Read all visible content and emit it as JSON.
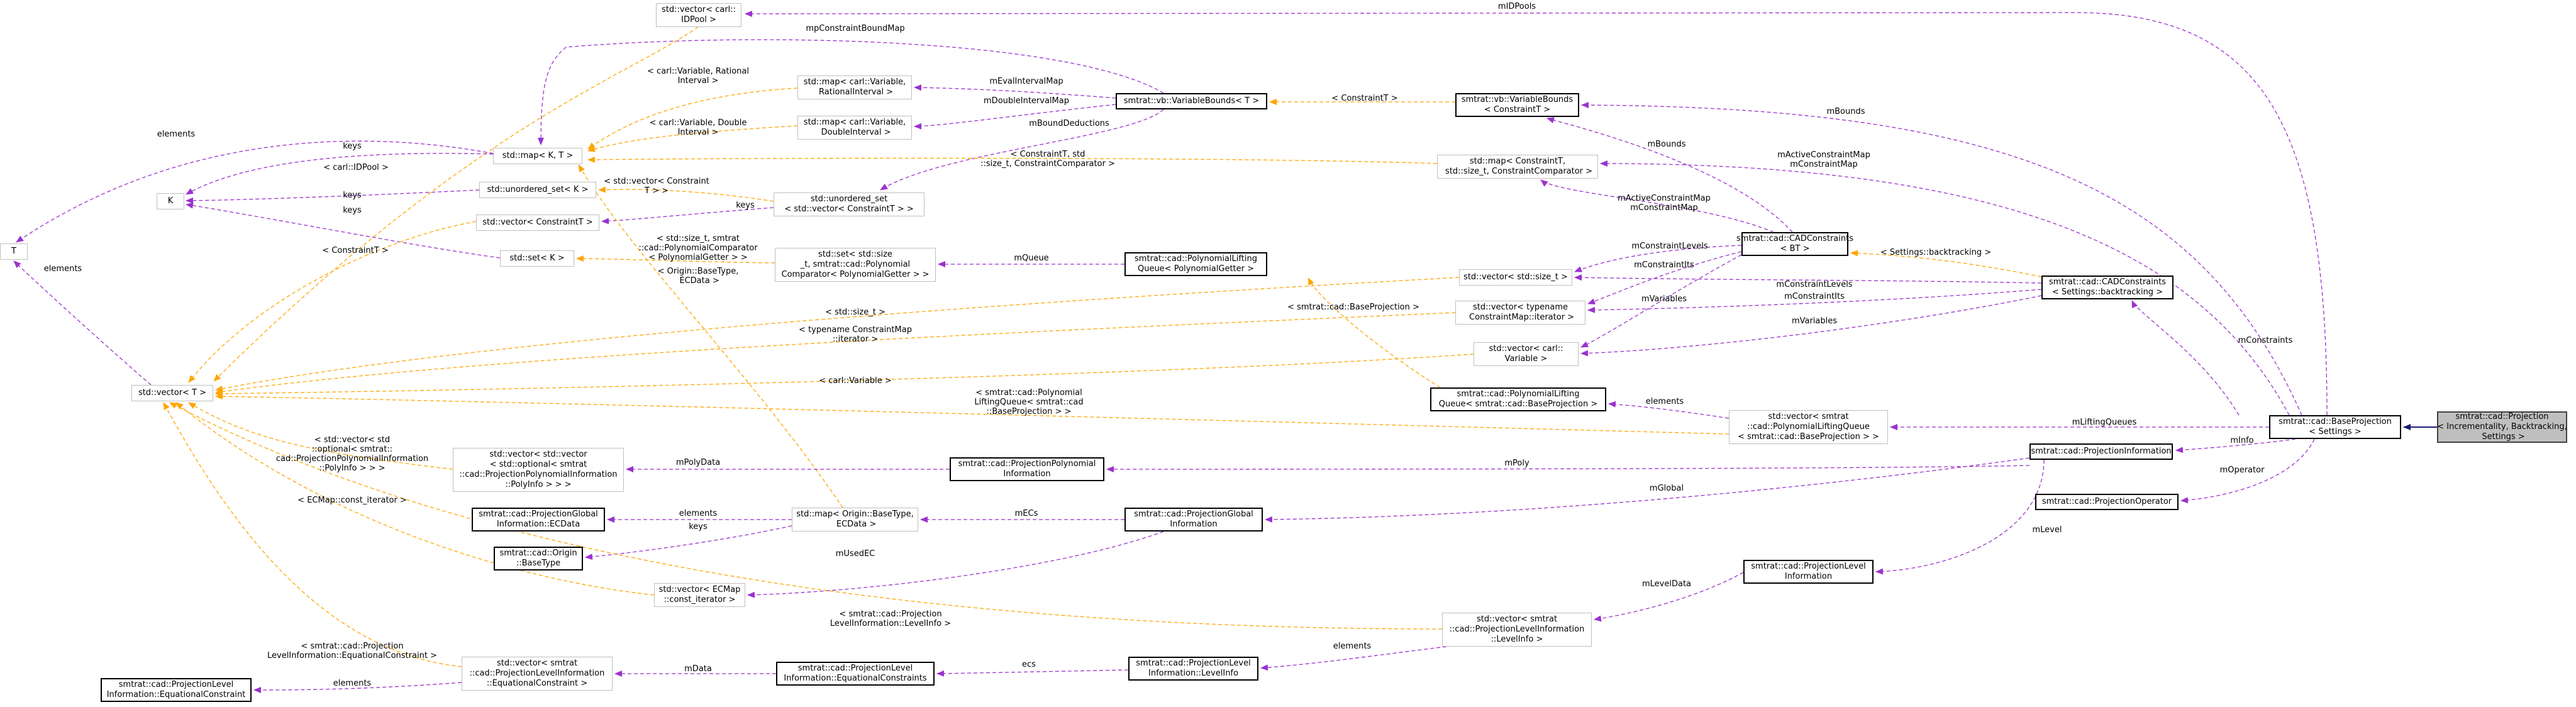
{
  "colors": {
    "usage": "#9a32cd",
    "template": "#ffa500",
    "inheritance": "#191970"
  },
  "nodes": {
    "projection_incr": "smtrat::cad::Projection\n< Incrementality, Backtracking,\n Settings >",
    "base_projection": "smtrat::cad::BaseProjection\n< Settings >",
    "projection_information": "smtrat::cad::ProjectionInformation",
    "projection_operator": "smtrat::cad::ProjectionOperator",
    "cadconstraints_bt": "smtrat::cad::CADConstraints\n< Settings::backtracking >",
    "cadconstraints": "smtrat::cad::CADConstraints\n< BT >",
    "vb_bounds_ct": "smtrat::vb::VariableBounds\n< ConstraintT >",
    "vb_bounds_t": "smtrat::vb::VariableBounds< T >",
    "map_constraint": "std::map< ConstraintT,\n std::size_t, ConstraintComparator >",
    "vector_size_t": "std::vector< std::size_t >",
    "vector_typename": "std::vector< typename\n ConstraintMap::iterator >",
    "vector_carl_var": "std::vector< carl::\nVariable >",
    "lifting_queue": "smtrat::cad::PolynomialLifting\nQueue< smtrat::cad::BaseProjection >",
    "vector_lifting_queue": "std::vector< smtrat\n::cad::PolynomialLiftingQueue\n< smtrat::cad::BaseProjection > >",
    "projection_level_info": "smtrat::cad::ProjectionLevel\nInformation",
    "vector_level_info": "std::vector< smtrat\n::cad::ProjectionLevelInformation\n::LevelInfo >",
    "level_info": "smtrat::cad::ProjectionLevel\nInformation::LevelInfo",
    "equational_constraints": "smtrat::cad::ProjectionLevel\nInformation::EquationalConstraints",
    "vector_eq_constraint": "std::vector< smtrat\n::cad::ProjectionLevelInformation\n::EquationalConstraint >",
    "eq_constraint": "smtrat::cad::ProjectionLevel\nInformation::EquationalConstraint",
    "lifting_queue_getter": "smtrat::cad::PolynomialLifting\nQueue< PolynomialGetter >",
    "set_size_t": "std::set< std::size\n_t, smtrat::cad::Polynomial\nComparator< PolynomialGetter > >",
    "poly_info": "smtrat::cad::ProjectionPolynomial\nInformation",
    "global_info": "smtrat::cad::ProjectionGlobal\nInformation",
    "map_origin": "std::map< Origin::BaseType,\n ECData >",
    "vector_vector_opt": "std::vector< std::vector\n< std::optional< smtrat\n::cad::ProjectionPolynomialInformation\n::PolyInfo > > >",
    "global_ecdata": "smtrat::cad::ProjectionGlobal\nInformation::ECData",
    "origin_basetype": "smtrat::cad::Origin\n::BaseType",
    "vector_ecmap": "std::vector< ECMap\n::const_iterator >",
    "vector_idpool": "std::vector< carl::\nIDPool >",
    "map_rational": "std::map< carl::Variable,\n RationalInterval >",
    "map_double": "std::map< carl::Variable,\n DoubleInterval >",
    "map_kt": "std::map< K, T >",
    "unordered_set_k": "std::unordered_set< K >",
    "unordered_set_vec": "std::unordered_set\n< std::vector< ConstraintT > >",
    "vector_constraint": "std::vector< ConstraintT >",
    "set_k": "std::set< K >",
    "k": "K",
    "t": "T",
    "vector_t": "std::vector< T >"
  },
  "labels": {
    "mIDPools": "mIDPools",
    "mConstraintBoundMap": "mpConstraintBoundMap",
    "carl_rational": "< carl::Variable, Rational\nInterval >",
    "mEvalIntervalMap": "mEvalIntervalMap",
    "mDoubleIntervalMap": "mDoubleIntervalMap",
    "constraintT_a": "< ConstraintT >",
    "carl_double": "< carl::Variable, Double\nInterval >",
    "mBoundDeductions": "mBoundDeductions",
    "elements_a": "elements",
    "keys_a": "keys",
    "constraintT_comp": "< ConstraintT, std\n::size_t, ConstraintComparator >",
    "carl_idpool": "< carl::IDPool >",
    "keys_b": "keys",
    "vector_constraint": "< std::vector< Constraint\nT > >",
    "keys_c": "keys",
    "keys_d": "keys",
    "mBounds_a": "mBounds",
    "mBounds_b": "mBounds",
    "mActive_a": "mActiveConstraintMap\nmConstraintMap",
    "mActive_b": "mActiveConstraintMap\nmConstraintMap",
    "mConstraintLevels_a": "mConstraintLevels",
    "mConstraintIts_a": "mConstraintIts",
    "mVariables_a": "mVariables",
    "settings_bt": "< Settings::backtracking >",
    "mConstraintLevels_b": "mConstraintLevels",
    "mConstraintIts_b": "mConstraintIts",
    "mVariables_b": "mVariables",
    "mConstraints": "mConstraints",
    "constraintT_b": "< ConstraintT >",
    "size_t_comp": "< std::size_t, smtrat\n::cad::PolynomialComparator\n< PolynomialGetter > >",
    "origin_ecdata": "< Origin::BaseType,\n ECData >",
    "mQueue": "mQueue",
    "base_projection": "< smtrat::cad::BaseProjection >",
    "std_size_t": "< std::size_t >",
    "typename_cmap": "< typename ConstraintMap\n::iterator >",
    "carl_variable": "< carl::Variable >",
    "elements_b": "elements",
    "lifting_queue_lbl": "< smtrat::cad::Polynomial\nLiftingQueue< smtrat::cad\n::BaseProjection > >",
    "mLiftingQueues": "mLiftingQueues",
    "mInfo": "mInfo",
    "mOperator": "mOperator",
    "vector_vector_opt": "< std::vector< std\n::optional< smtrat::\ncad::ProjectionPolynomialInformation\n::PolyInfo > > >",
    "mPolyData": "mPolyData",
    "mPoly": "mPoly",
    "mGlobal": "mGlobal",
    "ecmap_iter": "< ECMap::const_iterator >",
    "elements_c": "elements",
    "mECs": "mECs",
    "keys_e": "keys",
    "mUsedEC": "mUsedEC",
    "mLevel": "mLevel",
    "mLevelData": "mLevelData",
    "level_info_tpl": "< smtrat::cad::Projection\nLevelInformation::LevelInfo >",
    "elements_d": "elements",
    "ecs": "ecs",
    "mData": "mData",
    "eq_constraint_tpl": "< smtrat::cad::Projection\nLevelInformation::EquationalConstraint >",
    "elements_e": "elements",
    "elements_f": "elements"
  }
}
